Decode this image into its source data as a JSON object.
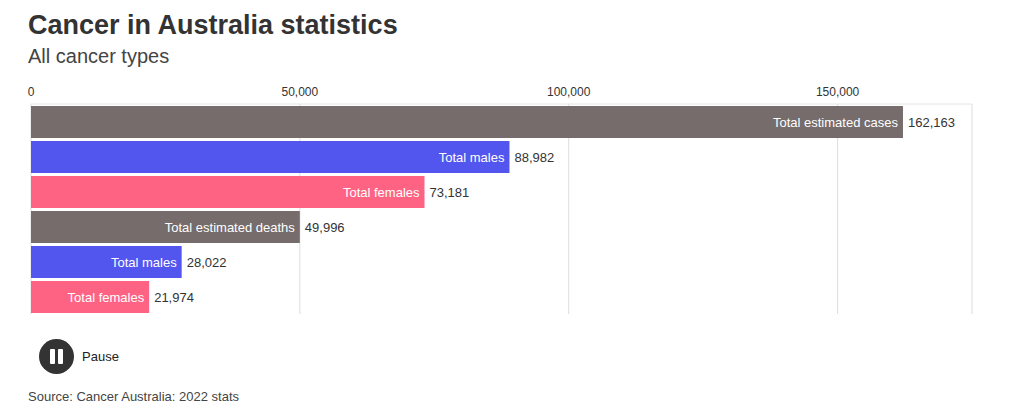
{
  "chart_data": {
    "type": "bar",
    "orientation": "horizontal",
    "title": "Cancer in Australia statistics",
    "subtitle": "All cancer types",
    "categories": [
      "Total estimated cases",
      "Total males",
      "Total females",
      "Total estimated deaths",
      "Total males",
      "Total females"
    ],
    "values": [
      162163,
      88982,
      73181,
      49996,
      28022,
      21974
    ],
    "value_labels": [
      "162,163",
      "88,982",
      "73,181",
      "49,996",
      "28,022",
      "21,974"
    ],
    "colors": [
      "#756c6b",
      "#5256ef",
      "#ff6384",
      "#756c6b",
      "#5256ef",
      "#ff6384"
    ],
    "xlim": [
      0,
      175000
    ],
    "xticks": [
      0,
      {
        "value": 50000,
        "label": "50,000"
      },
      {
        "value": 100000,
        "label": "100,000"
      },
      {
        "value": 150000,
        "label": "150,000"
      }
    ],
    "grid": true,
    "data_labels": true,
    "tick_labels": "x",
    "annotations": [
      "Pause",
      "Source: Cancer Australia: 2022 stats"
    ]
  }
}
